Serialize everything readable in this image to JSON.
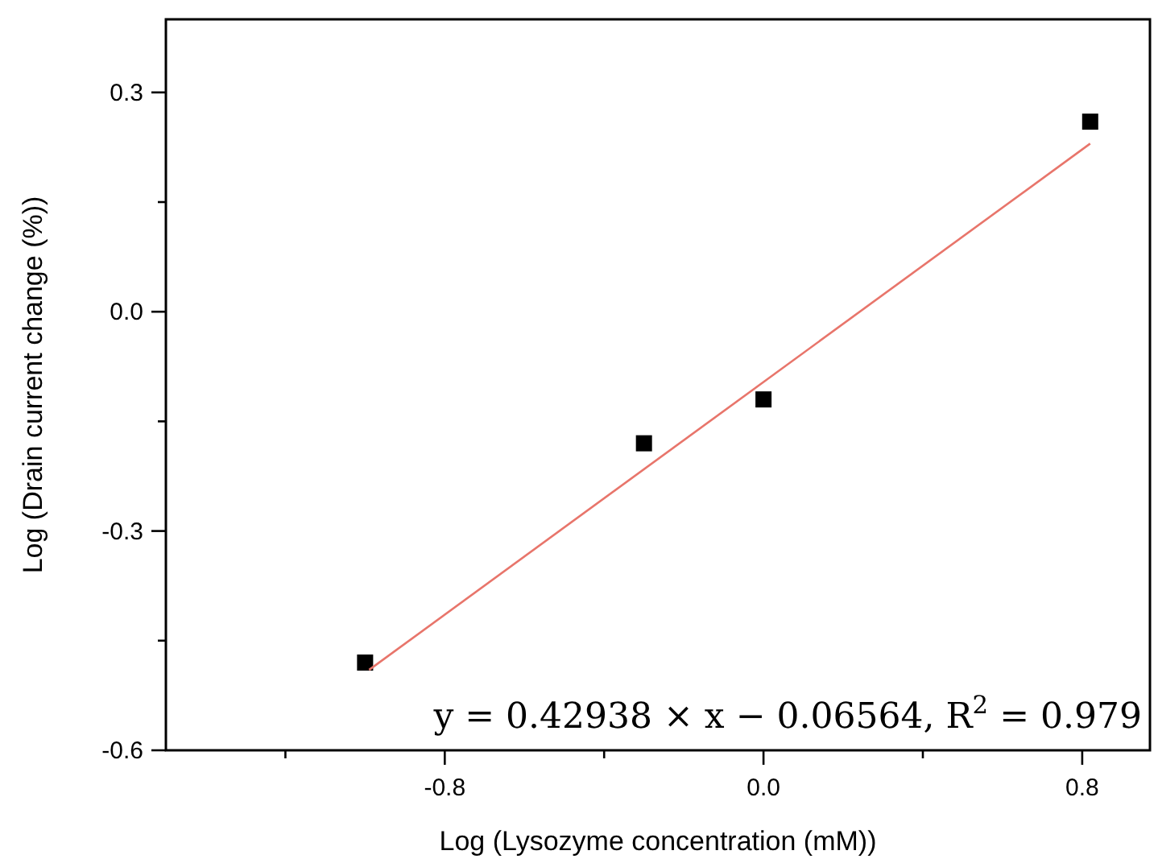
{
  "chart_data": {
    "type": "scatter",
    "xlabel": "Log (Lysozyme concentration (mM))",
    "ylabel": "Log (Drain current change (%))",
    "xlim": [
      -1.5,
      0.97
    ],
    "ylim": [
      -0.6,
      0.4
    ],
    "xticks": [
      {
        "value": -1.2,
        "label": null
      },
      -0.8,
      {
        "value": -0.4,
        "label": null
      },
      {
        "value": 0,
        "label": "0.0"
      },
      {
        "value": 0.4,
        "label": null
      },
      0.8
    ],
    "yticks": [
      -0.6,
      {
        "value": -0.45,
        "label": null
      },
      -0.3,
      {
        "value": -0.15,
        "label": null
      },
      {
        "value": 0,
        "label": "0.0"
      },
      {
        "value": 0.15,
        "label": null
      },
      0.3
    ],
    "marker": "square",
    "grid": false,
    "series": [
      {
        "color": "#000000",
        "x": [
          -1.0,
          -0.3,
          0.0,
          0.82
        ],
        "values": [
          -0.48,
          -0.18,
          -0.12,
          0.26
        ]
      },
      {
        "type": "line",
        "marker": "none",
        "color": "#e8756b",
        "x": [
          -0.99,
          0.82
        ],
        "values": [
          -0.49,
          0.23
        ]
      }
    ],
    "annotations": [
      "y = 0.42938 × x − 0.06564, R$^{2}$ = 0.979"
    ]
  }
}
